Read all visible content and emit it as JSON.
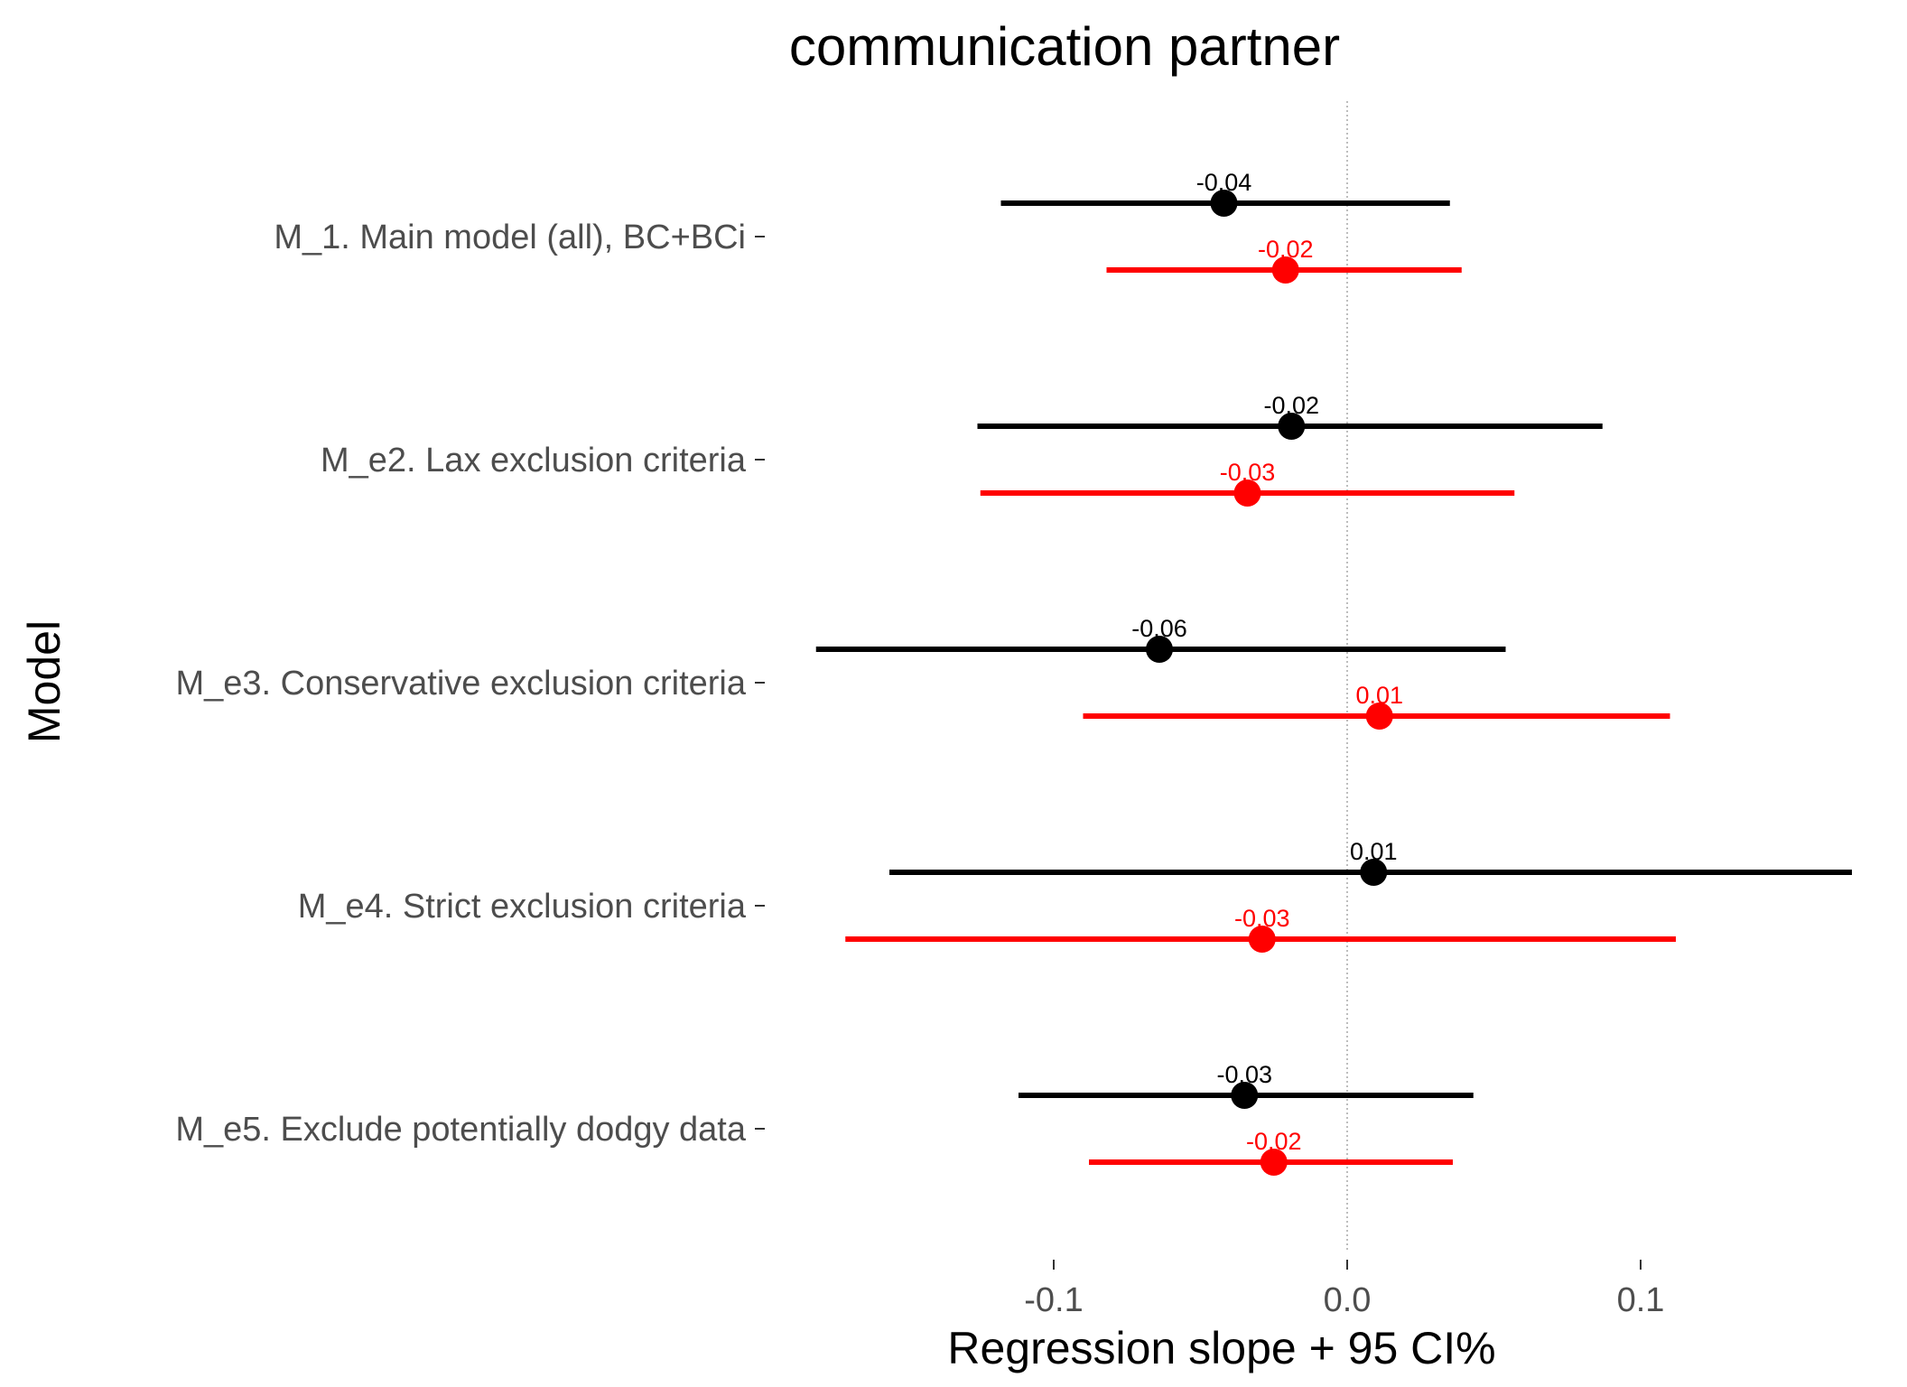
{
  "chart_data": {
    "type": "scatter",
    "subtype": "forest-plot",
    "title": "communication partner",
    "xlabel": "Regression slope + 95 CI%",
    "ylabel": "Model",
    "xlim": [
      -0.2,
      0.175
    ],
    "xticks": [
      -0.1,
      0.0,
      0.1
    ],
    "xtick_labels": [
      "-0.1",
      "0.0",
      "0.1"
    ],
    "reference_line": 0.0,
    "grid": false,
    "legend": "none",
    "categories": [
      "M_1. Main model (all), BC+BCi",
      "M_e2. Lax exclusion criteria",
      "M_e3. Conservative exclusion criteria",
      "M_e4. Strict exclusion criteria",
      "M_e5. Exclude potentially dodgy data"
    ],
    "series": [
      {
        "color": "#000000",
        "estimates": [
          -0.042,
          -0.019,
          -0.064,
          0.009,
          -0.035
        ],
        "lower": [
          -0.118,
          -0.126,
          -0.181,
          -0.156,
          -0.112
        ],
        "upper": [
          0.035,
          0.087,
          0.054,
          0.172,
          0.043
        ],
        "labels": [
          "-0.04",
          "-0.02",
          "-0.06",
          "0.01",
          "-0.03"
        ]
      },
      {
        "color": "#ff0000",
        "estimates": [
          -0.021,
          -0.034,
          0.011,
          -0.029,
          -0.025
        ],
        "lower": [
          -0.082,
          -0.125,
          -0.09,
          -0.171,
          -0.088
        ],
        "upper": [
          0.039,
          0.057,
          0.11,
          0.112,
          0.036
        ],
        "labels": [
          "-0.02",
          "-0.03",
          "0.01",
          "-0.03",
          "-0.02"
        ]
      }
    ]
  }
}
